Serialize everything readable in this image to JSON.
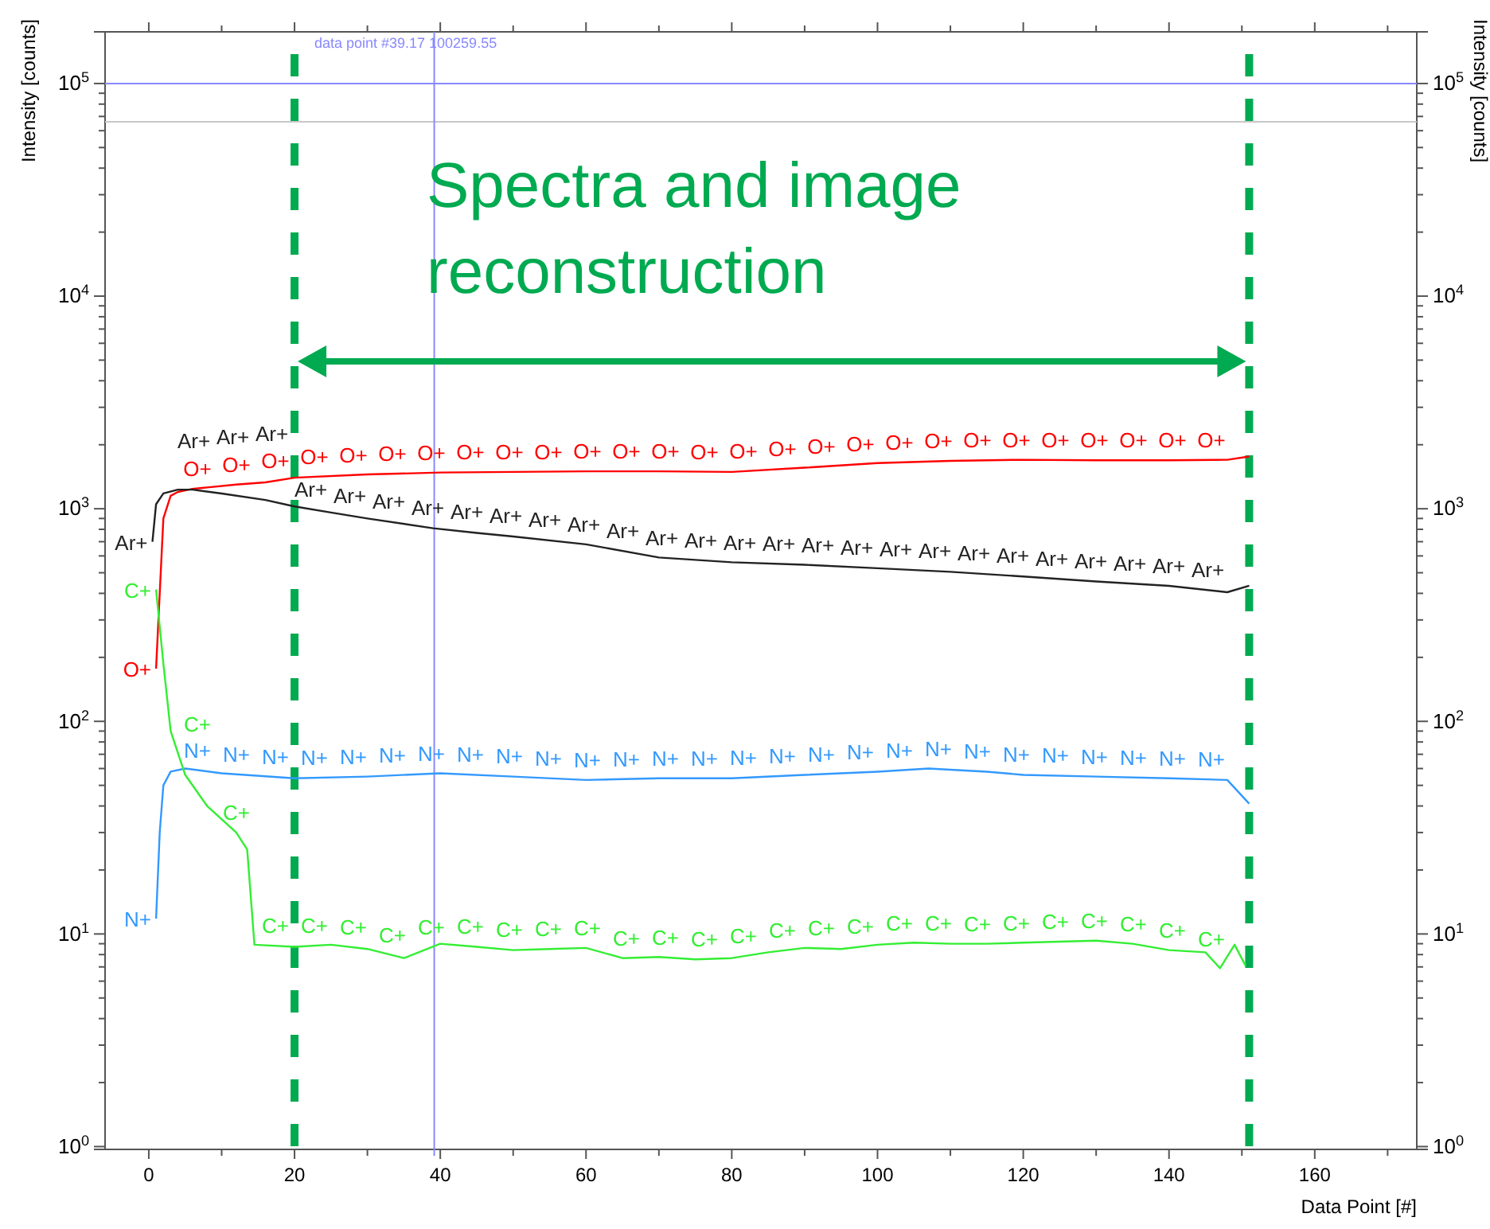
{
  "chart_data": {
    "type": "line",
    "xlabel": "Data Point [#]",
    "ylabel": "Intensity [counts]",
    "y2label": "Intensity [counts]",
    "xlim": [
      -6,
      174
    ],
    "xticks": [
      0,
      {
        "value": 10,
        "label": null
      },
      20,
      {
        "value": 30,
        "label": null
      },
      40,
      {
        "value": 50,
        "label": null
      },
      60,
      {
        "value": 70,
        "label": null
      },
      80,
      {
        "value": 90,
        "label": null
      },
      100,
      {
        "value": 110,
        "label": null
      },
      120,
      {
        "value": 130,
        "label": null
      },
      140,
      {
        "value": 150,
        "label": null
      },
      160,
      {
        "value": 170,
        "label": null
      }
    ],
    "log": "y",
    "ylim": [
      0.97,
      175000
    ],
    "yticks": [
      {
        "value": 1,
        "label": "10$^{0}$"
      },
      {
        "value": 2,
        "label": null
      },
      {
        "value": 3,
        "label": null
      },
      {
        "value": 4,
        "label": null
      },
      {
        "value": 5,
        "label": null
      },
      {
        "value": 6,
        "label": null
      },
      {
        "value": 7,
        "label": null
      },
      {
        "value": 8,
        "label": null
      },
      {
        "value": 9,
        "label": null
      },
      {
        "value": 10,
        "label": "10$^{1}$"
      },
      {
        "value": 20,
        "label": null
      },
      {
        "value": 30,
        "label": null
      },
      {
        "value": 40,
        "label": null
      },
      {
        "value": 50,
        "label": null
      },
      {
        "value": 60,
        "label": null
      },
      {
        "value": 70,
        "label": null
      },
      {
        "value": 80,
        "label": null
      },
      {
        "value": 90,
        "label": null
      },
      {
        "value": 100,
        "label": "10$^{2}$"
      },
      {
        "value": 200,
        "label": null
      },
      {
        "value": 300,
        "label": null
      },
      {
        "value": 400,
        "label": null
      },
      {
        "value": 500,
        "label": null
      },
      {
        "value": 600,
        "label": null
      },
      {
        "value": 700,
        "label": null
      },
      {
        "value": 800,
        "label": null
      },
      {
        "value": 900,
        "label": null
      },
      {
        "value": 1000,
        "label": "10$^{3}$"
      },
      {
        "value": 2000,
        "label": null
      },
      {
        "value": 3000,
        "label": null
      },
      {
        "value": 4000,
        "label": null
      },
      {
        "value": 5000,
        "label": null
      },
      {
        "value": 6000,
        "label": null
      },
      {
        "value": 7000,
        "label": null
      },
      {
        "value": 8000,
        "label": null
      },
      {
        "value": 9000,
        "label": null
      },
      {
        "value": 10000,
        "label": "10$^{4}$"
      },
      {
        "value": 20000,
        "label": null
      },
      {
        "value": 30000,
        "label": null
      },
      {
        "value": 40000,
        "label": null
      },
      {
        "value": 50000,
        "label": null
      },
      {
        "value": 60000,
        "label": null
      },
      {
        "value": 70000,
        "label": null
      },
      {
        "value": 80000,
        "label": null
      },
      {
        "value": 90000,
        "label": null
      },
      {
        "value": 100000,
        "label": "10$^{5}$"
      }
    ],
    "series": [
      {
        "name": "O+",
        "color": "#ff0000",
        "x": [
          1,
          2,
          3,
          4,
          6,
          8,
          12,
          16,
          20,
          30,
          40,
          50,
          60,
          70,
          80,
          90,
          100,
          110,
          120,
          130,
          140,
          148,
          151
        ],
        "values": [
          177,
          900,
          1150,
          1200,
          1240,
          1260,
          1300,
          1330,
          1400,
          1450,
          1480,
          1490,
          1500,
          1500,
          1490,
          1560,
          1640,
          1680,
          1700,
          1690,
          1690,
          1700,
          1760
        ]
      },
      {
        "name": "Ar+",
        "color": "#222222",
        "x": [
          0.5,
          1,
          2,
          4,
          6,
          10,
          16,
          20,
          25,
          30,
          39,
          45,
          50,
          60,
          70,
          80,
          90,
          100,
          110,
          120,
          130,
          140,
          148,
          151
        ],
        "values": [
          700,
          1050,
          1180,
          1230,
          1230,
          1180,
          1100,
          1025,
          960,
          900,
          810,
          770,
          740,
          680,
          590,
          560,
          545,
          525,
          505,
          480,
          455,
          434,
          405,
          434
        ]
      },
      {
        "name": "N+",
        "color": "#3399ff",
        "x": [
          1,
          1.5,
          2,
          3,
          5,
          10,
          20,
          30,
          40,
          50,
          60,
          70,
          80,
          90,
          100,
          107,
          115,
          120,
          130,
          140,
          148,
          151
        ],
        "values": [
          11.8,
          30,
          50,
          58,
          60,
          57,
          54,
          55,
          57,
          55,
          53,
          54,
          54,
          56,
          58,
          60,
          58,
          56,
          55,
          54,
          53,
          41
        ]
      },
      {
        "name": "C+",
        "color": "#33ee33",
        "x": [
          1,
          2,
          3,
          5,
          8,
          12,
          13.5,
          14.5,
          20,
          25,
          30,
          35,
          40,
          45,
          50,
          55,
          60,
          65,
          70,
          75,
          80,
          85,
          90,
          95,
          100,
          105,
          110,
          115,
          120,
          125,
          130,
          135,
          140,
          145,
          147,
          149,
          150.5
        ],
        "values": [
          417,
          187,
          90,
          56,
          40,
          30,
          25,
          8.9,
          8.7,
          8.9,
          8.5,
          7.7,
          9,
          8.7,
          8.4,
          8.5,
          8.6,
          7.7,
          7.8,
          7.6,
          7.7,
          8.2,
          8.6,
          8.5,
          8.9,
          9.1,
          9,
          9,
          9.1,
          9.2,
          9.3,
          9,
          8.4,
          8.2,
          6.9,
          8.9,
          7.1
        ]
      }
    ],
    "ref_lines": [
      {
        "axis": "y",
        "value": 100000,
        "color": "#8888ff"
      },
      {
        "axis": "y",
        "value": 66000,
        "color": "#c8c8c8"
      },
      {
        "axis": "x",
        "value": 39.17,
        "color": "#8888ff",
        "label": "data point #39.17  100259.55"
      },
      {
        "axis": "x",
        "value": 20,
        "color": "#00aa50",
        "line_style": "dashed"
      },
      {
        "axis": "x",
        "value": 151,
        "color": "#00aa50",
        "line_style": "dashed"
      }
    ],
    "annotations": [
      "Spectra and image reconstruction"
    ],
    "grid": false
  }
}
